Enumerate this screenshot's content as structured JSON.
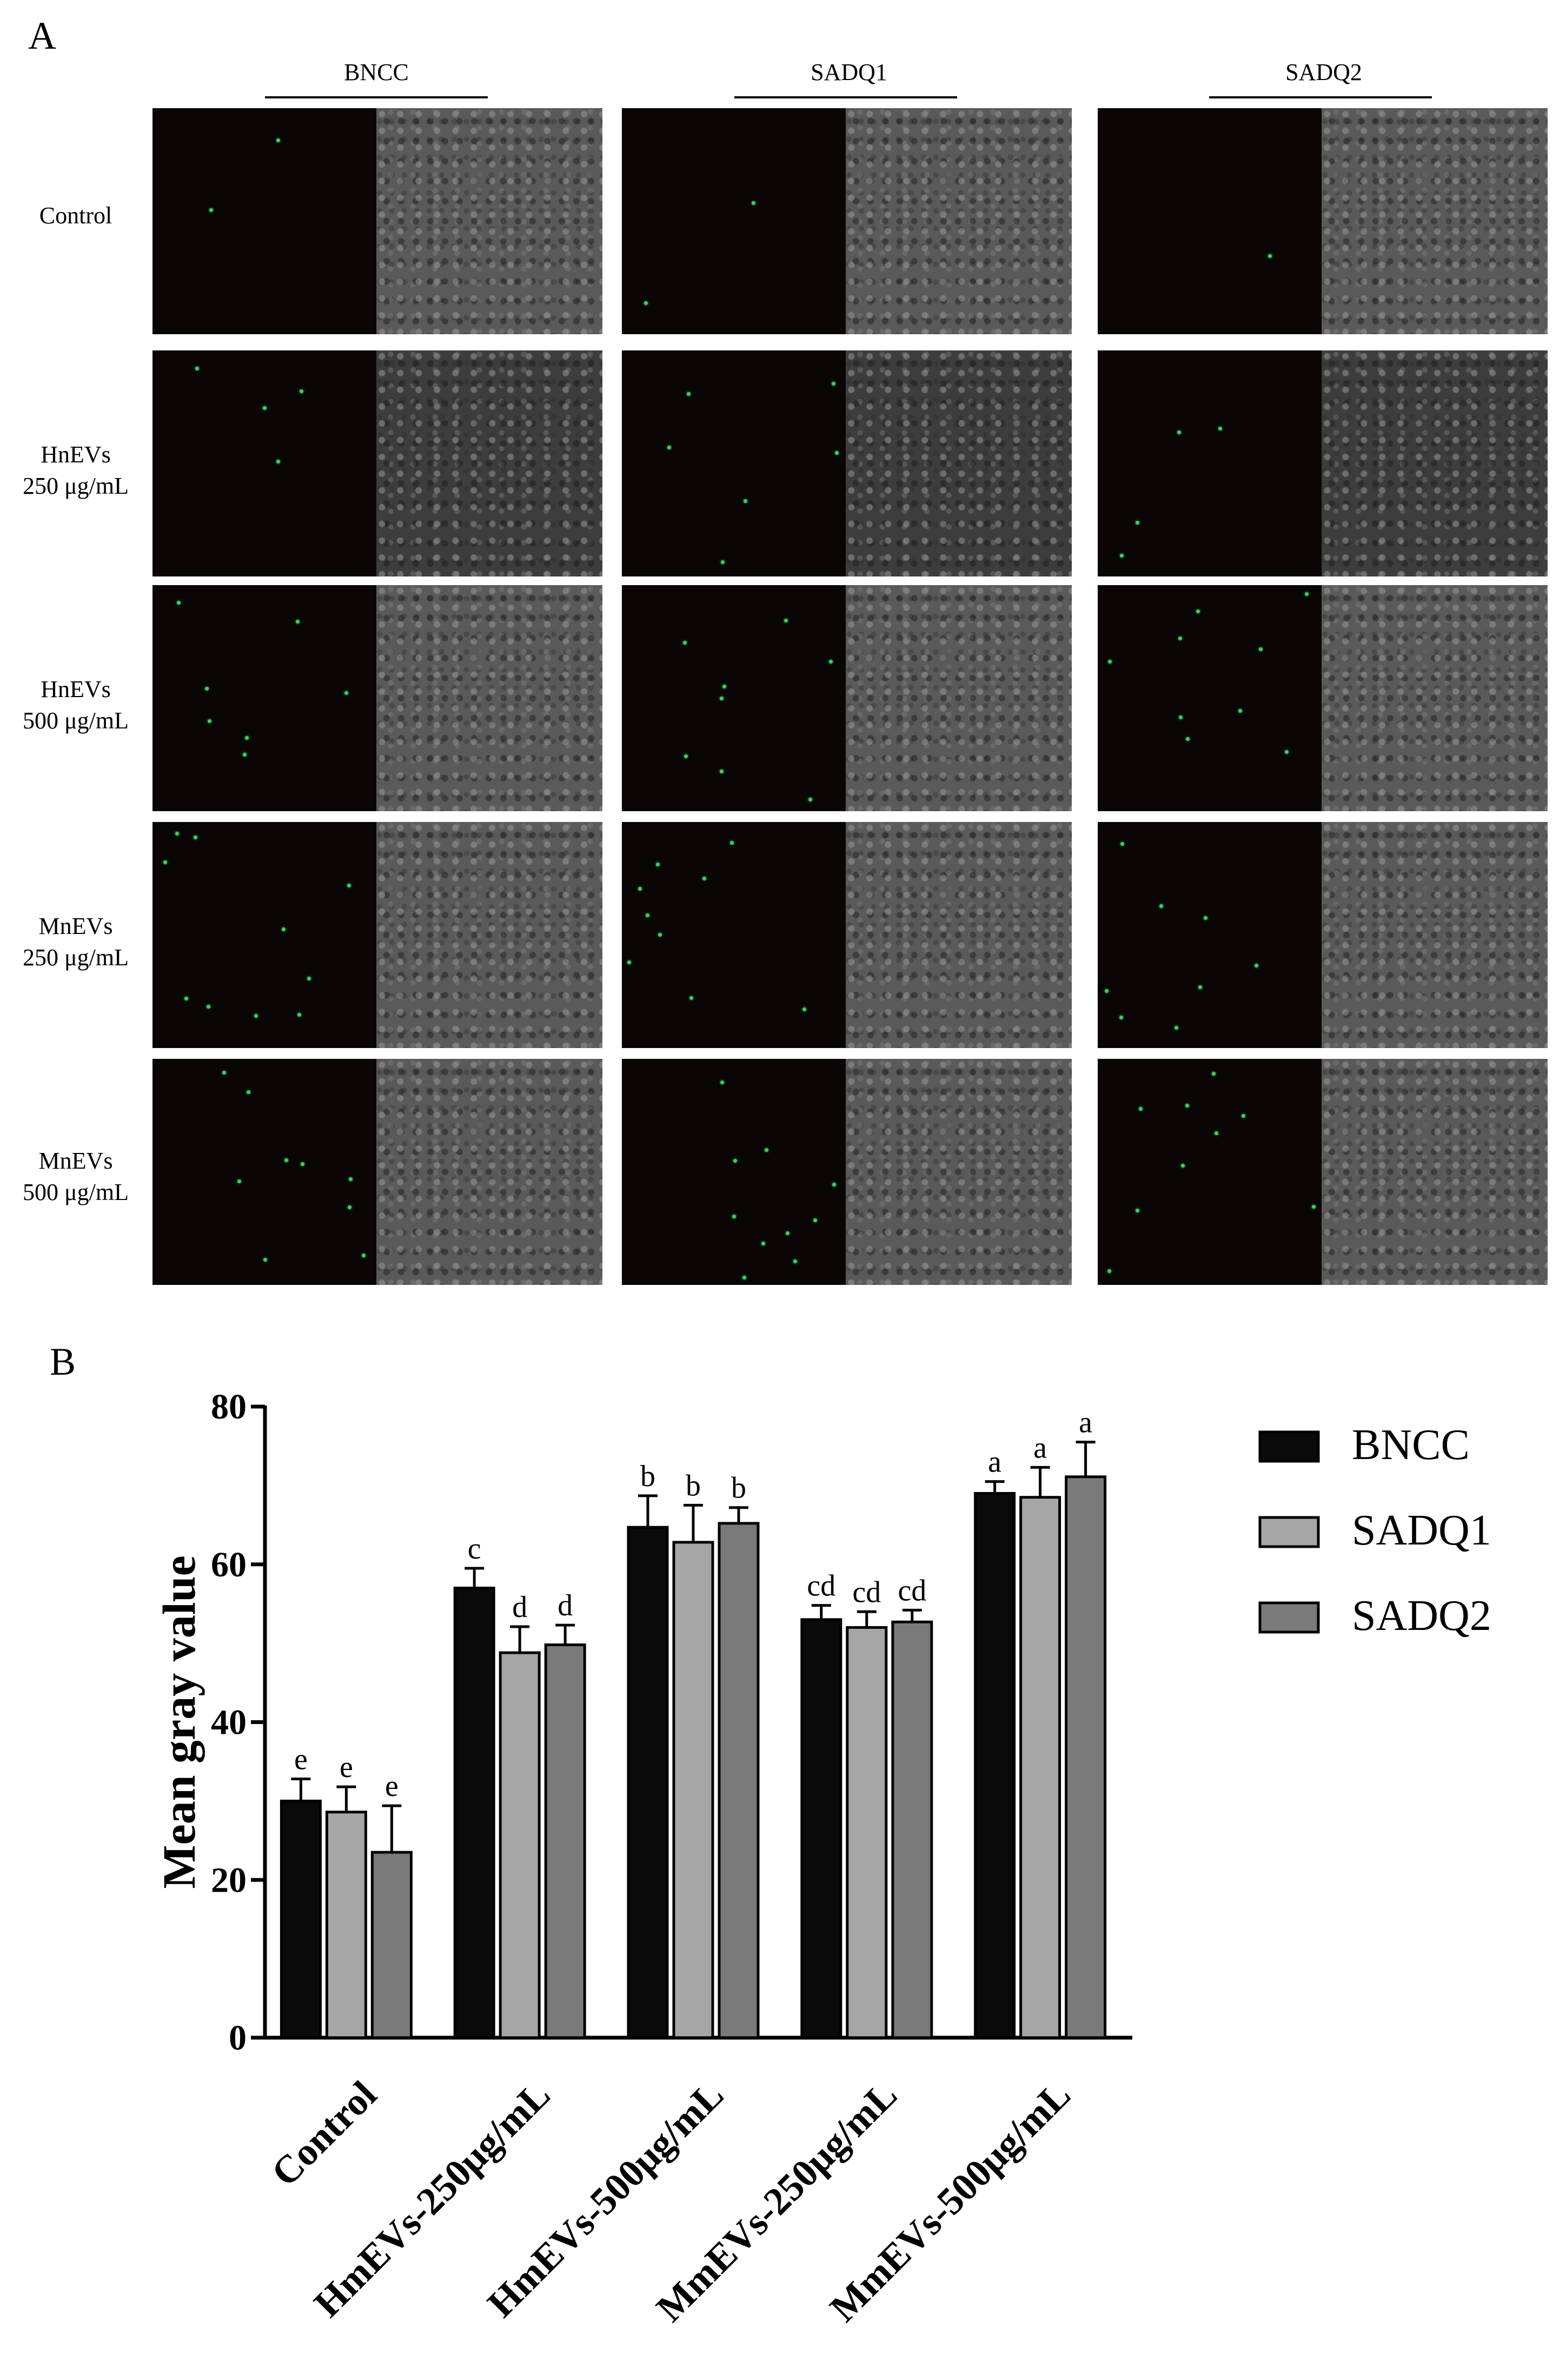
{
  "panel_a": {
    "label": "A",
    "columns": [
      "BNCC",
      "SADQ1",
      "SADQ2"
    ],
    "rows": [
      {
        "line1": "Control",
        "line2": ""
      },
      {
        "line1": "HnEVs",
        "line2": "250 μg/mL"
      },
      {
        "line1": "HnEVs",
        "line2": "500 μg/mL"
      },
      {
        "line1": "MnEVs",
        "line2": "250 μg/mL"
      },
      {
        "line1": "MnEVs",
        "line2": "500 μg/mL"
      }
    ],
    "fluorescence_color": "#39d35a"
  },
  "panel_b": {
    "label": "B"
  },
  "chart_data": {
    "type": "bar",
    "title": "",
    "xlabel": "",
    "ylabel": "Mean gray value",
    "ylim": [
      0,
      80
    ],
    "yticks": [
      0,
      20,
      40,
      60,
      80
    ],
    "categories": [
      "Control",
      "HmEVs-250μg/mL",
      "HmEVs-500μg/mL",
      "MmEVs-250μg/mL",
      "MmEVs-500μg/mL"
    ],
    "series": [
      {
        "name": "BNCC",
        "color": "#0a0a0a",
        "values": [
          30.0,
          57.0,
          64.7,
          53.0,
          69.0
        ],
        "errors": [
          2.8,
          2.5,
          4.0,
          1.8,
          1.5
        ],
        "letters": [
          "e",
          "c",
          "b",
          "cd",
          "a"
        ]
      },
      {
        "name": "SADQ1",
        "color": "#a6a6a6",
        "values": [
          28.6,
          48.8,
          62.8,
          52.0,
          68.5
        ],
        "errors": [
          3.2,
          3.3,
          4.7,
          2.0,
          3.8
        ],
        "letters": [
          "e",
          "d",
          "b",
          "cd",
          "a"
        ]
      },
      {
        "name": "SADQ2",
        "color": "#7a7a7a",
        "values": [
          23.5,
          49.8,
          65.2,
          52.7,
          71.1
        ],
        "errors": [
          5.9,
          2.5,
          2.0,
          1.5,
          4.4
        ],
        "letters": [
          "e",
          "d",
          "b",
          "cd",
          "a"
        ]
      }
    ],
    "legend_position": "top-right",
    "grid": false
  }
}
